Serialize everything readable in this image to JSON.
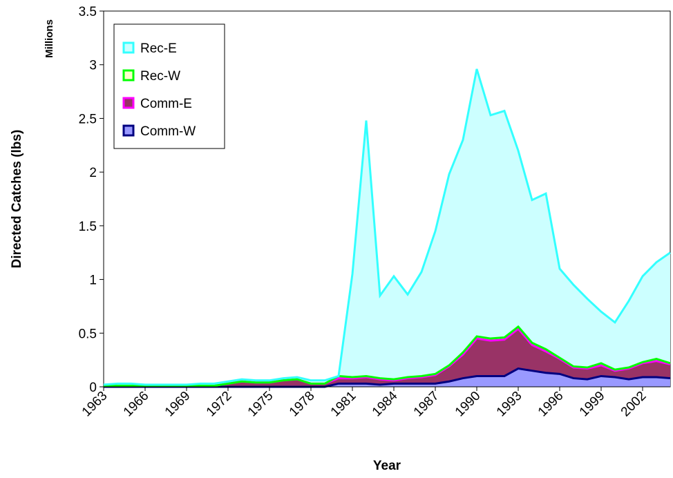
{
  "chart_data": {
    "type": "stacked_area",
    "y_label": "Directed Catches (lbs)",
    "y_unit_label": "Millions",
    "x_label": "Year",
    "categories": [
      "1963",
      null,
      null,
      "1966",
      null,
      null,
      "1969",
      null,
      null,
      "1972",
      null,
      null,
      "1975",
      null,
      null,
      "1978",
      null,
      null,
      "1981",
      null,
      null,
      "1984",
      null,
      null,
      "1987",
      null,
      null,
      "1990",
      null,
      null,
      "1993",
      null,
      null,
      "1996",
      null,
      null,
      "1999",
      null,
      null,
      "2002",
      null,
      null
    ],
    "ylim": [
      0,
      3.5
    ],
    "yticks": [
      0,
      0.5,
      1,
      1.5,
      2,
      2.5,
      3,
      3.5
    ],
    "series": [
      {
        "name": "Comm-W",
        "color": "#000080",
        "fill": "#9999ff",
        "values": [
          0,
          0,
          0,
          0,
          0,
          0,
          0,
          0,
          0,
          0,
          0,
          0,
          0,
          0,
          0,
          0,
          0,
          0.03,
          0.03,
          0.03,
          0.02,
          0.03,
          0.03,
          0.03,
          0.03,
          0.05,
          0.08,
          0.1,
          0.1,
          0.1,
          0.17,
          0.15,
          0.13,
          0.12,
          0.08,
          0.07,
          0.1,
          0.09,
          0.07,
          0.09,
          0.09,
          0.08
        ]
      },
      {
        "name": "Comm-E",
        "color": "#ff00ff",
        "fill": "#993366",
        "values": [
          0.01,
          0.01,
          0.01,
          0.01,
          0.01,
          0.01,
          0.01,
          0.01,
          0.01,
          0.03,
          0.05,
          0.04,
          0.04,
          0.06,
          0.07,
          0.03,
          0.03,
          0.05,
          0.05,
          0.06,
          0.05,
          0.03,
          0.05,
          0.06,
          0.08,
          0.14,
          0.22,
          0.35,
          0.33,
          0.34,
          0.37,
          0.24,
          0.2,
          0.14,
          0.1,
          0.1,
          0.1,
          0.06,
          0.1,
          0.13,
          0.15,
          0.13
        ]
      },
      {
        "name": "Rec-W",
        "color": "#00ff00",
        "fill": "#ffffcc",
        "values": [
          0,
          0,
          0,
          0,
          0,
          0,
          0,
          0,
          0,
          0,
          0,
          0,
          0,
          0,
          0,
          0,
          0,
          0.02,
          0.01,
          0.01,
          0.01,
          0.01,
          0.01,
          0.01,
          0.01,
          0.01,
          0.02,
          0.02,
          0.02,
          0.02,
          0.02,
          0.02,
          0.02,
          0.01,
          0.01,
          0.01,
          0.02,
          0.01,
          0.01,
          0.01,
          0.02,
          0.01
        ]
      },
      {
        "name": "Rec-E",
        "color": "#33ffff",
        "fill": "#ccffff",
        "values": [
          0.01,
          0.02,
          0.02,
          0.01,
          0.01,
          0.01,
          0.01,
          0.02,
          0.02,
          0.02,
          0.02,
          0.02,
          0.02,
          0.02,
          0.02,
          0.03,
          0.03,
          0,
          0.96,
          2.38,
          0.77,
          0.96,
          0.77,
          0.97,
          1.33,
          1.78,
          1.98,
          2.49,
          2.08,
          2.11,
          1.64,
          1.33,
          1.45,
          0.83,
          0.76,
          0.64,
          0.48,
          0.44,
          0.62,
          0.8,
          0.9,
          1.03
        ]
      }
    ],
    "legend": "upper left"
  }
}
